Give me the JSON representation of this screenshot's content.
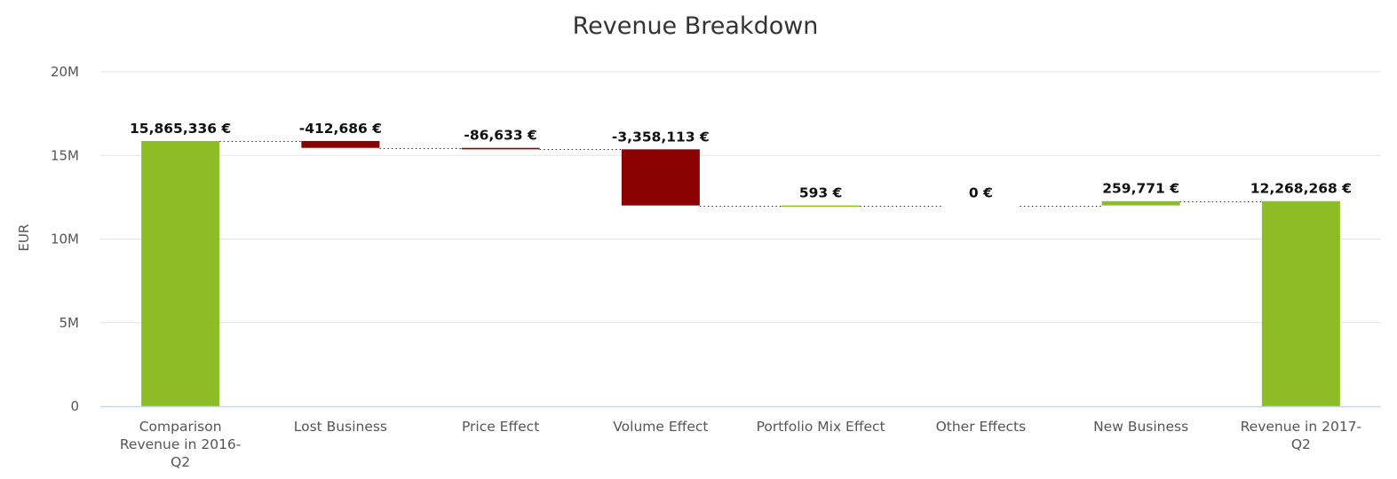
{
  "chart_data": {
    "type": "waterfall",
    "title": "Revenue Breakdown",
    "ylabel": "EUR",
    "xlabel": "",
    "ylim": [
      0,
      20000000
    ],
    "yticks": [
      {
        "value": 0,
        "label": "0"
      },
      {
        "value": 5000000,
        "label": "5M"
      },
      {
        "value": 10000000,
        "label": "10M"
      },
      {
        "value": 15000000,
        "label": "15M"
      },
      {
        "value": 20000000,
        "label": "20M"
      }
    ],
    "grid": true,
    "colors": {
      "total": "#8cbd24",
      "increase": "#8cbd24",
      "decrease": "#8b0000",
      "grid": "#e3e3e3",
      "axis": "#ccd6eb",
      "connector": "#333333"
    },
    "points": [
      {
        "category": "Comparison Revenue in 2016-Q2",
        "category_lines": [
          "Comparison",
          "Revenue in 2016-",
          "Q2"
        ],
        "value": 15865336,
        "kind": "total",
        "label": "15,865,336 €"
      },
      {
        "category": "Lost Business",
        "category_lines": [
          "Lost Business"
        ],
        "value": -412686,
        "kind": "delta",
        "label": "-412,686 €"
      },
      {
        "category": "Price Effect",
        "category_lines": [
          "Price Effect"
        ],
        "value": -86633,
        "kind": "delta",
        "label": "-86,633 €"
      },
      {
        "category": "Volume Effect",
        "category_lines": [
          "Volume Effect"
        ],
        "value": -3358113,
        "kind": "delta",
        "label": "-3,358,113 €"
      },
      {
        "category": "Portfolio Mix Effect",
        "category_lines": [
          "Portfolio Mix Effect"
        ],
        "value": 593,
        "kind": "delta",
        "label": "593 €"
      },
      {
        "category": "Other Effects",
        "category_lines": [
          "Other Effects"
        ],
        "value": 0,
        "kind": "delta",
        "label": "0 €"
      },
      {
        "category": "New Business",
        "category_lines": [
          "New Business"
        ],
        "value": 259771,
        "kind": "delta",
        "label": "259,771 €"
      },
      {
        "category": "Revenue in 2017-Q2",
        "category_lines": [
          "Revenue in 2017-",
          "Q2"
        ],
        "value": 12268268,
        "kind": "total",
        "label": "12,268,268 €"
      }
    ]
  }
}
